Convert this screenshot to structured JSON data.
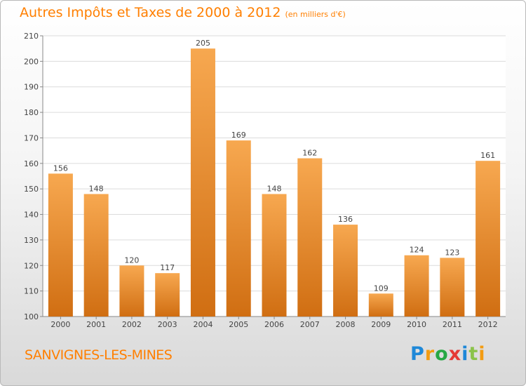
{
  "header": {
    "title": "Autres Impôts et Taxes de 2000 à 2012",
    "subtitle": "(en milliers d'€)"
  },
  "footer": {
    "city": "SANVIGNES-LES-MINES",
    "logo_parts": [
      "P",
      "r",
      "o",
      "x",
      "i",
      "t",
      "i"
    ]
  },
  "colors": {
    "bar_light": "#f7a850",
    "bar_dark": "#d06e12",
    "accent": "#ff7f00"
  },
  "chart_data": {
    "type": "bar",
    "title": "Autres Impôts et Taxes de 2000 à 2012",
    "subtitle": "(en milliers d'€)",
    "categories": [
      "2000",
      "2001",
      "2002",
      "2003",
      "2004",
      "2005",
      "2006",
      "2007",
      "2008",
      "2009",
      "2010",
      "2011",
      "2012"
    ],
    "values": [
      156,
      148,
      120,
      117,
      205,
      169,
      148,
      162,
      136,
      109,
      124,
      123,
      161
    ],
    "ylim": [
      100,
      210
    ],
    "yticks": [
      100,
      110,
      120,
      130,
      140,
      150,
      160,
      170,
      180,
      190,
      200,
      210
    ],
    "grid": true
  }
}
